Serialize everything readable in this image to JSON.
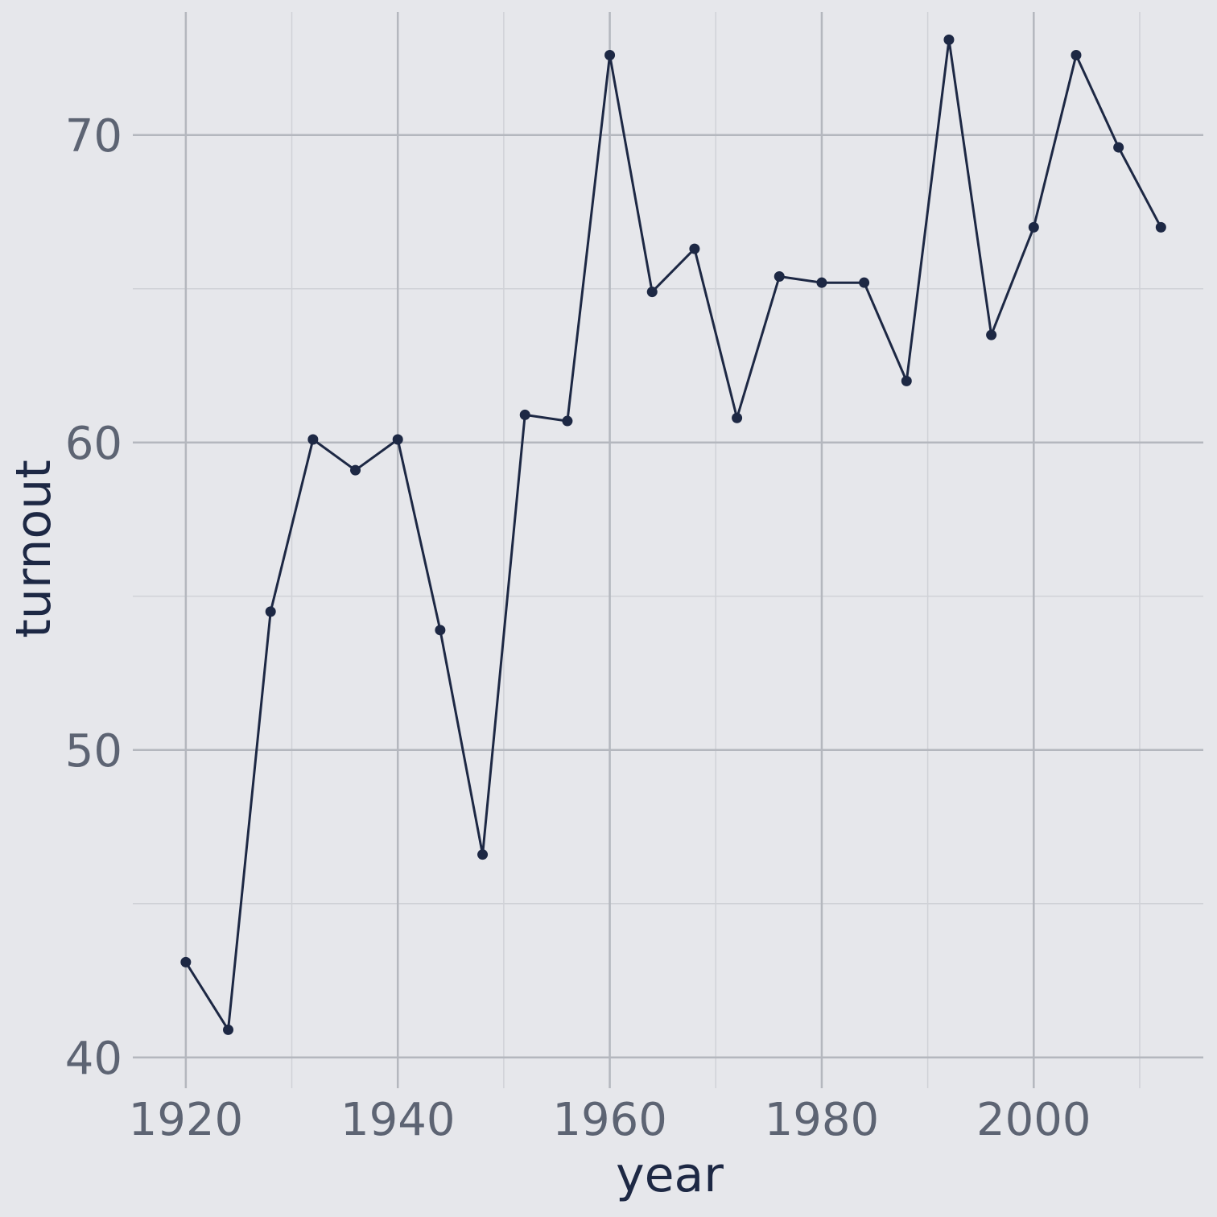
{
  "chart_data": {
    "type": "line",
    "title": "",
    "xlabel": "year",
    "ylabel": "turnout",
    "xlim": [
      1915,
      2016
    ],
    "ylim": [
      39,
      74
    ],
    "xticks": [
      1920,
      1940,
      1960,
      1980,
      2000
    ],
    "xtick_labels": [
      "1920",
      "1940",
      "1960",
      "1980",
      "2000"
    ],
    "yticks": [
      40,
      50,
      60,
      70
    ],
    "ytick_labels": [
      "40",
      "50",
      "60",
      "70"
    ],
    "grid": true,
    "legend": "none",
    "colors": {
      "background": "#e6e7eb",
      "line": "#1d2844"
    },
    "series": [
      {
        "x": [
          1920,
          1924,
          1928,
          1932,
          1936,
          1940,
          1944,
          1948,
          1952,
          1956,
          1960,
          1964,
          1968,
          1972,
          1976,
          1980,
          1984,
          1988,
          1992,
          1996,
          2000,
          2004,
          2008,
          2012
        ],
        "values": [
          43.1,
          40.9,
          54.5,
          60.1,
          59.1,
          60.1,
          53.9,
          46.6,
          60.9,
          60.7,
          72.6,
          64.9,
          66.3,
          60.8,
          65.4,
          65.2,
          65.2,
          62.0,
          73.1,
          63.5,
          67.0,
          72.6,
          69.6,
          67.0
        ]
      }
    ]
  }
}
